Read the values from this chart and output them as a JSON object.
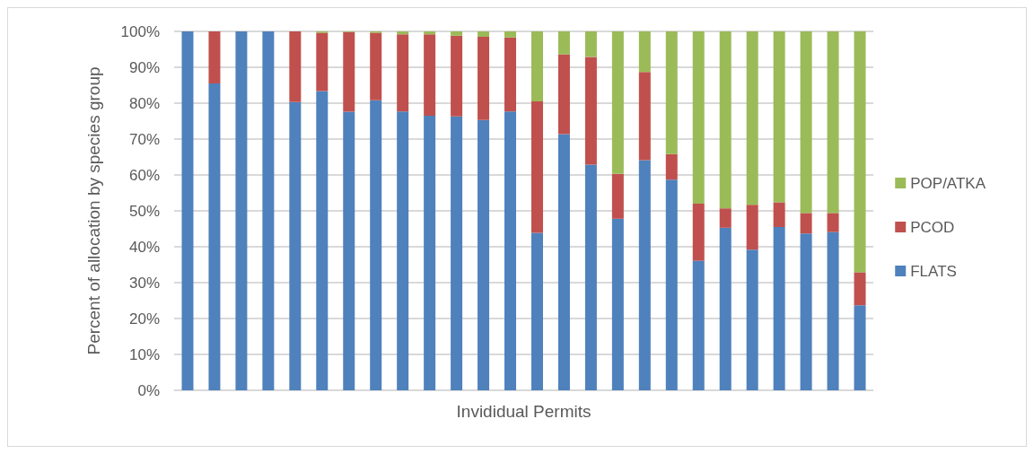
{
  "chart_data": {
    "type": "bar",
    "stacked": true,
    "xlabel": "Invididual Permits",
    "ylabel": "Percent of allocation by species group",
    "categories": [
      null,
      null,
      null,
      null,
      null,
      null,
      null,
      null,
      null,
      null,
      null,
      null,
      null,
      null,
      null,
      null,
      null,
      null,
      null,
      null,
      null,
      null,
      null,
      null,
      null,
      null
    ],
    "series": [
      {
        "name": "FLATS",
        "color": "#4f81bd",
        "values": [
          100,
          85.5,
          100,
          100,
          80.3,
          83.4,
          77.6,
          80.8,
          77.7,
          76.5,
          76.3,
          75.3,
          77.7,
          43.9,
          71.4,
          62.9,
          47.8,
          64.1,
          58.7,
          36.1,
          45.3,
          39.2,
          45.5,
          43.7,
          44.1,
          23.7
        ]
      },
      {
        "name": "PCOD",
        "color": "#c0504d",
        "values": [
          0,
          14.5,
          0,
          0,
          19.7,
          16.2,
          22.2,
          18.8,
          21.5,
          22.7,
          22.5,
          23.2,
          20.6,
          36.6,
          22.2,
          30,
          12.5,
          24.6,
          7.1,
          15.9,
          5.4,
          12.5,
          6.9,
          5.7,
          5.3,
          9.2
        ]
      },
      {
        "name": "POP/ATKA",
        "color": "#9bbb59",
        "values": [
          0,
          0,
          0,
          0,
          0,
          0.4,
          0.2,
          0.4,
          0.8,
          0.8,
          1.2,
          1.5,
          1.7,
          19.5,
          6.4,
          7.1,
          39.7,
          11.3,
          34.2,
          48,
          49.3,
          48.3,
          47.6,
          50.6,
          50.6,
          67.1
        ]
      }
    ],
    "ylim": [
      0,
      100
    ],
    "yticks": [
      {
        "value": 0,
        "label": "0%"
      },
      {
        "value": 10,
        "label": "10%"
      },
      {
        "value": 20,
        "label": "20%"
      },
      {
        "value": 30,
        "label": "30%"
      },
      {
        "value": 40,
        "label": "40%"
      },
      {
        "value": 50,
        "label": "50%"
      },
      {
        "value": 60,
        "label": "60%"
      },
      {
        "value": 70,
        "label": "70%"
      },
      {
        "value": 80,
        "label": "80%"
      },
      {
        "value": 90,
        "label": "90%"
      },
      {
        "value": 100,
        "label": "100%"
      }
    ],
    "grid": "y",
    "legend": "right"
  }
}
